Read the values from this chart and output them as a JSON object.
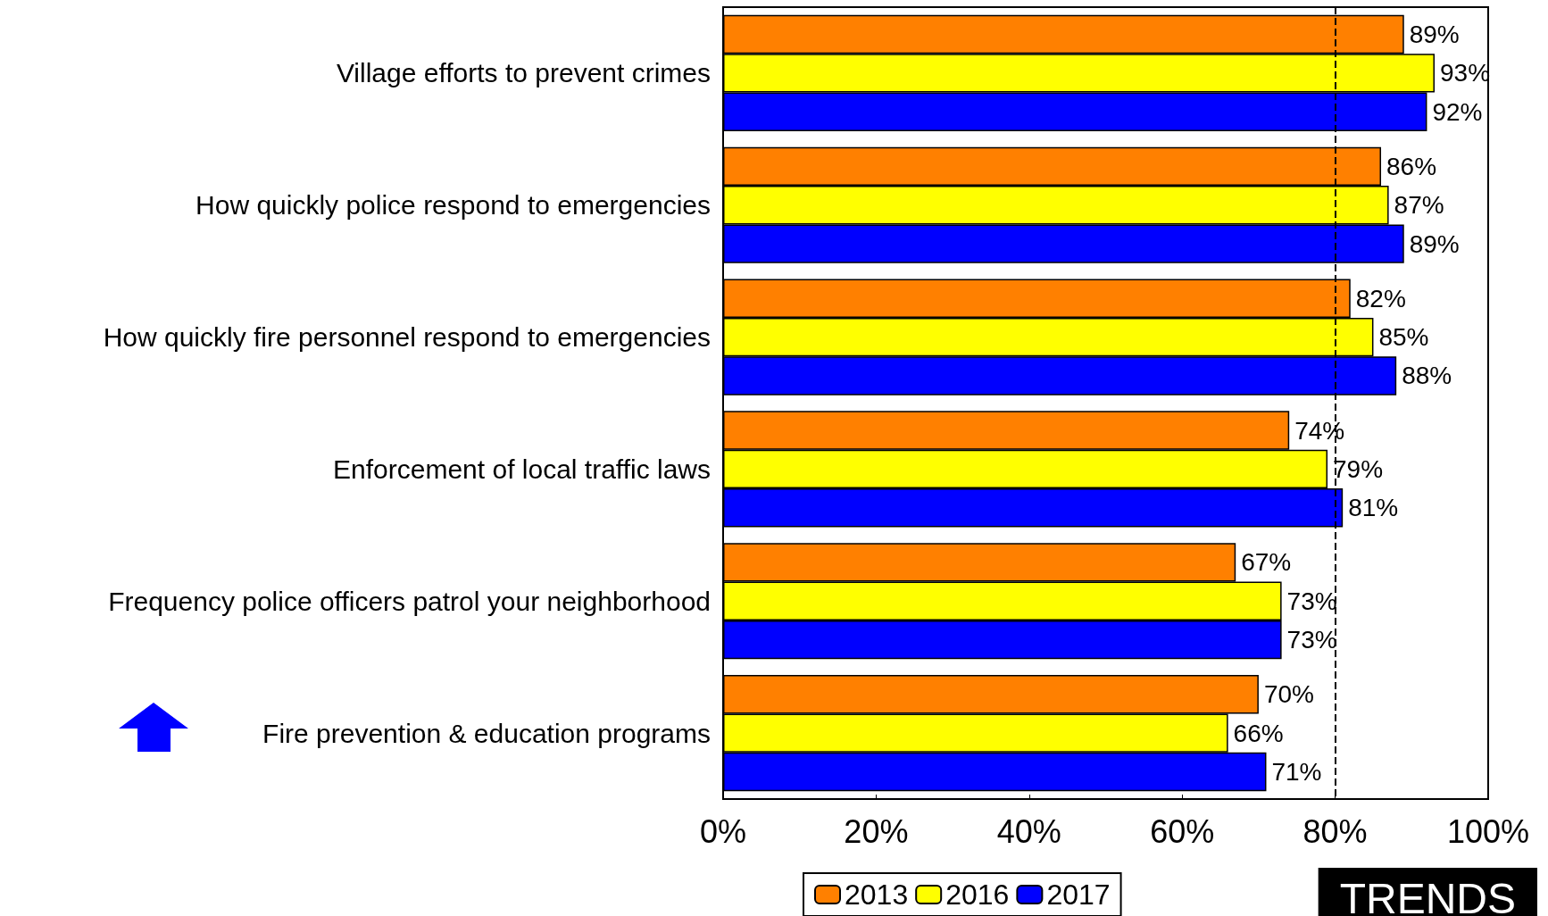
{
  "chart_data": {
    "type": "bar",
    "orientation": "horizontal",
    "categories": [
      "Village efforts to prevent crimes",
      "How quickly police respond to emergencies",
      "How quickly fire personnel respond to emergencies",
      "Enforcement of local traffic laws",
      "Frequency police officers patrol your neighborhood",
      "Fire prevention & education programs"
    ],
    "series": [
      {
        "name": "2013",
        "color": "#ff8000",
        "values": [
          89,
          86,
          82,
          74,
          67,
          70
        ],
        "value_labels": [
          "89%",
          "86%",
          "82%",
          "74%",
          "67%",
          "70%"
        ]
      },
      {
        "name": "2016",
        "color": "#ffff00",
        "values": [
          93,
          87,
          85,
          79,
          73,
          66
        ],
        "value_labels": [
          "93%",
          "87%",
          "85%",
          "79%",
          "73%",
          "66%"
        ]
      },
      {
        "name": "2017",
        "color": "#0000ff",
        "values": [
          92,
          89,
          88,
          81,
          73,
          71
        ],
        "value_labels": [
          "92%",
          "89%",
          "88%",
          "81%",
          "73%",
          "71%"
        ]
      }
    ],
    "xlim": [
      0,
      100
    ],
    "xticks": [
      {
        "value": 0,
        "label": "0%"
      },
      {
        "value": 20,
        "label": "20%"
      },
      {
        "value": 40,
        "label": "40%"
      },
      {
        "value": 60,
        "label": "60%"
      },
      {
        "value": 80,
        "label": "80%"
      },
      {
        "value": 100,
        "label": "100%"
      }
    ],
    "ref_lines": [
      {
        "axis": "x",
        "value": 80,
        "line_style": "dashed"
      }
    ],
    "grid": false,
    "legend": "bottom",
    "annotations": [
      "TRENDS"
    ]
  }
}
